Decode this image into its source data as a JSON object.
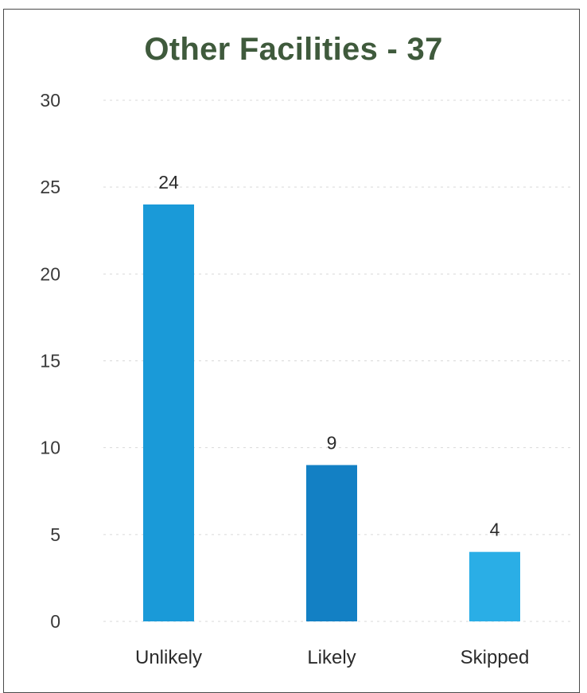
{
  "chart_data": {
    "type": "bar",
    "title": "Other Facilities - 37",
    "categories": [
      "Unlikely",
      "Likely",
      "Skipped"
    ],
    "values": [
      24,
      9,
      4
    ],
    "colors": [
      "#1a9ad8",
      "#1380c4",
      "#2aaee6"
    ],
    "ylim": [
      0,
      30
    ],
    "yticks": [
      "0",
      "5",
      "10",
      "15",
      "20",
      "25",
      "30"
    ],
    "grid": true,
    "data_labels": true,
    "legend": "none"
  }
}
